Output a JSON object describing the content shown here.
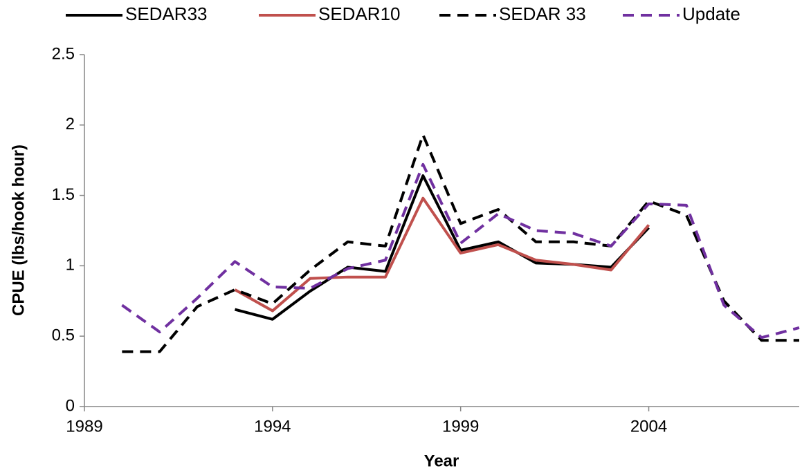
{
  "chart_data": {
    "type": "line",
    "x_label": "Year",
    "y_label": "CPUE (lbs/hook hour)",
    "x": [
      1990,
      1991,
      1992,
      1993,
      1994,
      1995,
      1996,
      1997,
      1998,
      1999,
      2000,
      2001,
      2002,
      2003,
      2004,
      2005,
      2006,
      2007,
      2008
    ],
    "series": [
      {
        "name": "SEDAR33",
        "color": "#000000",
        "dashed": false,
        "values": [
          null,
          null,
          null,
          0.69,
          0.62,
          0.82,
          0.99,
          0.96,
          1.64,
          1.11,
          1.17,
          1.02,
          1.01,
          0.99,
          1.27,
          null,
          null,
          null,
          null
        ]
      },
      {
        "name": "SEDAR10",
        "color": "#c0504d",
        "dashed": false,
        "values": [
          null,
          null,
          null,
          0.83,
          0.68,
          0.91,
          0.92,
          0.92,
          1.48,
          1.09,
          1.15,
          1.04,
          1.01,
          0.97,
          1.29,
          null,
          null,
          null,
          null
        ]
      },
      {
        "name": "SEDAR 33",
        "color": "#000000",
        "dashed": true,
        "values": [
          0.39,
          0.39,
          0.71,
          0.83,
          0.73,
          0.97,
          1.17,
          1.14,
          1.93,
          1.3,
          1.4,
          1.17,
          1.17,
          1.14,
          1.46,
          1.36,
          0.75,
          0.47,
          0.47
        ]
      },
      {
        "name": "Update",
        "color": "#7030a0",
        "dashed": true,
        "values": [
          0.72,
          0.53,
          0.77,
          1.03,
          0.85,
          0.84,
          0.98,
          1.04,
          1.72,
          1.16,
          1.37,
          1.25,
          1.23,
          1.14,
          1.44,
          1.43,
          0.72,
          0.49,
          0.56
        ]
      }
    ],
    "xlim": [
      1989,
      2008
    ],
    "xticks": [
      1989,
      1994,
      1999,
      2004
    ],
    "ylim": [
      0,
      2.5
    ],
    "yticks": [
      0,
      0.5,
      1,
      1.5,
      2,
      2.5
    ],
    "legend": "top"
  }
}
